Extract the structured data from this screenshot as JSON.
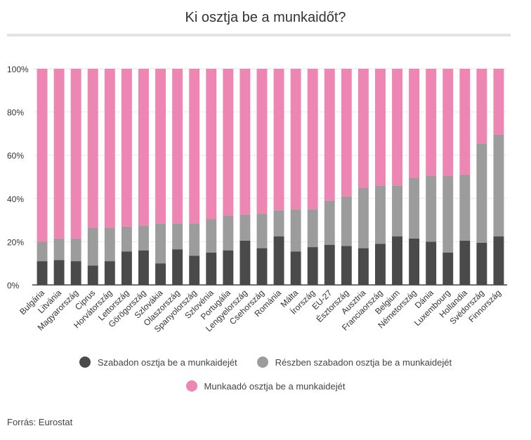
{
  "title": "Ki osztja be a munkaidőt?",
  "source": "Forrás: Eurostat",
  "colors": {
    "free": "#4a4a4a",
    "partial": "#9c9c9c",
    "employer": "#ee86b4",
    "axis": "#444444",
    "grid": "#e9e9e9"
  },
  "chart_data": {
    "type": "bar",
    "stacked": true,
    "title": "Ki osztja be a munkaidőt?",
    "ylim": [
      0,
      100
    ],
    "yticks": [
      "0%",
      "20%",
      "40%",
      "60%",
      "80%",
      "100%"
    ],
    "legend_position": "bottom",
    "categories": [
      "Bulgária",
      "Litvánia",
      "Magyarország",
      "Ciprus",
      "Horvátország",
      "Lettország",
      "Görögország",
      "Szlovákia",
      "Olaszország",
      "Spanyolország",
      "Szlovénia",
      "Portugália",
      "Lengyelország",
      "Csehország",
      "Románia",
      "Málta",
      "Írország",
      "EU-27",
      "Észtország",
      "Ausztria",
      "Franciaország",
      "Belgium",
      "Németország",
      "Dánia",
      "Luxembourg",
      "Hollandia",
      "Svédország",
      "Finnország"
    ],
    "series": [
      {
        "name": "Szabadon osztja be a munkaidejét",
        "values": [
          11,
          11.5,
          11,
          9,
          11,
          15.5,
          16,
          10,
          16.5,
          13.5,
          15,
          16,
          20.5,
          17,
          22.5,
          15.5,
          17.5,
          18.5,
          18,
          17,
          19,
          22.5,
          21.5,
          20,
          15,
          20.5,
          19.5,
          22.5
        ]
      },
      {
        "name": "Részben szabadon osztja be a munkaidejét",
        "values": [
          9,
          10,
          10.5,
          17.5,
          15.5,
          11.5,
          11.5,
          18.5,
          12,
          15,
          15.5,
          16,
          12,
          16,
          12,
          19.5,
          17.5,
          20.5,
          23,
          28,
          27,
          23.5,
          28,
          30.5,
          35.5,
          30.5,
          46,
          47
        ]
      },
      {
        "name": "Munkaadó osztja be a munkaidejét",
        "values": [
          80,
          78.5,
          78.5,
          73.5,
          73.5,
          73,
          72.5,
          71.5,
          71.5,
          71.5,
          69.5,
          68,
          67.5,
          67,
          65.5,
          65,
          65,
          61,
          59,
          55,
          54,
          54,
          50.5,
          49.5,
          49.5,
          49,
          34.5,
          30.5
        ]
      }
    ]
  }
}
